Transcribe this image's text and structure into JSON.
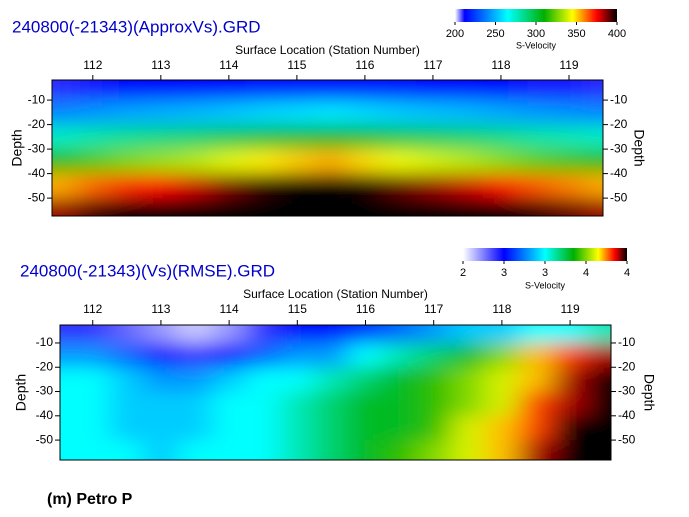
{
  "chart_data": [
    {
      "type": "heatmap",
      "title": "240800(-21343)(ApproxVs).GRD",
      "x_label": "Surface Location (Station Number)",
      "y_label": "Depth",
      "colorbar_label": "S-Velocity",
      "x": [
        111.5,
        112,
        112.5,
        113,
        113.5,
        114,
        114.5,
        115,
        115.5,
        116,
        116.5,
        117,
        117.5,
        118,
        118.5,
        119,
        119.5
      ],
      "y": [
        -5,
        -15,
        -25,
        -35,
        -45,
        -55
      ],
      "values": [
        [
          210,
          211,
          212,
          212,
          213,
          213,
          214,
          215,
          215,
          214,
          214,
          213,
          213,
          212,
          211,
          211,
          210
        ],
        [
          240,
          243,
          246,
          248,
          250,
          253,
          256,
          258,
          260,
          257,
          254,
          252,
          250,
          247,
          244,
          242,
          240
        ],
        [
          275,
          280,
          284,
          287,
          290,
          295,
          299,
          302,
          305,
          301,
          296,
          293,
          290,
          286,
          281,
          278,
          275
        ],
        [
          315,
          321,
          327,
          331,
          335,
          341,
          347,
          351,
          355,
          349,
          343,
          339,
          335,
          329,
          323,
          319,
          315
        ],
        [
          355,
          363,
          370,
          375,
          380,
          388,
          395,
          400,
          405,
          398,
          390,
          385,
          380,
          373,
          365,
          360,
          355
        ],
        [
          385,
          393,
          400,
          405,
          410,
          418,
          425,
          430,
          435,
          428,
          420,
          415,
          410,
          403,
          395,
          390,
          385
        ]
      ],
      "xlim": [
        111.4,
        119.5
      ],
      "ylim": [
        -57.3,
        -1.8
      ],
      "xticks": [
        112,
        113,
        114,
        115,
        116,
        117,
        118,
        119
      ],
      "yticks": [
        -10,
        -20,
        -30,
        -40,
        -50
      ],
      "colorbar_ticks": [
        200,
        250,
        300,
        350,
        400
      ],
      "colorscale": [
        [
          200,
          "#ffffff"
        ],
        [
          212,
          "#0000ff"
        ],
        [
          265,
          "#00ffff"
        ],
        [
          310,
          "#00b000"
        ],
        [
          345,
          "#ffff00"
        ],
        [
          375,
          "#ff0000"
        ],
        [
          400,
          "#000000"
        ]
      ]
    },
    {
      "type": "heatmap",
      "title": "240800(-21343)(Vs)(RMSE).GRD",
      "x_label": "Surface Location (Station Number)",
      "y_label": "Depth",
      "colorbar_label": "S-Velocity",
      "x": [
        111.5,
        112,
        112.5,
        113,
        113.5,
        114,
        114.5,
        115,
        115.5,
        116,
        116.5,
        117,
        117.5,
        118,
        118.5,
        119,
        119.5
      ],
      "y": [
        -5,
        -15,
        -25,
        -35,
        -45,
        -55
      ],
      "values": [
        [
          2.4,
          2.4,
          2.3,
          2.2,
          2.1,
          2.2,
          2.4,
          2.5,
          2.5,
          2.6,
          2.7,
          2.8,
          2.9,
          2.9,
          3.0,
          3.0,
          3.1
        ],
        [
          2.8,
          2.8,
          2.7,
          2.5,
          2.4,
          2.5,
          2.7,
          2.8,
          2.8,
          3.0,
          3.1,
          3.2,
          3.3,
          3.5,
          3.7,
          3.8,
          3.9
        ],
        [
          3.0,
          3.0,
          2.9,
          2.8,
          2.8,
          2.9,
          3.0,
          3.0,
          3.1,
          3.2,
          3.3,
          3.4,
          3.5,
          3.6,
          3.7,
          3.9,
          4.0
        ],
        [
          3.0,
          3.0,
          2.9,
          2.9,
          2.9,
          3.0,
          3.0,
          3.1,
          3.2,
          3.3,
          3.3,
          3.4,
          3.5,
          3.6,
          3.8,
          3.9,
          4.0
        ],
        [
          3.0,
          3.0,
          2.9,
          2.9,
          2.9,
          3.0,
          3.0,
          3.1,
          3.2,
          3.3,
          3.3,
          3.4,
          3.6,
          3.7,
          3.8,
          4.0,
          4.1
        ],
        [
          3.0,
          3.0,
          3.0,
          2.9,
          3.0,
          3.0,
          3.0,
          3.1,
          3.2,
          3.3,
          3.4,
          3.5,
          3.6,
          3.7,
          3.9,
          4.0,
          4.1
        ]
      ],
      "xlim": [
        111.52,
        119.6
      ],
      "ylim": [
        -58.2,
        -2.6
      ],
      "xticks": [
        112,
        113,
        114,
        115,
        116,
        117,
        118,
        119
      ],
      "yticks": [
        -10,
        -20,
        -30,
        -40,
        -50
      ],
      "colorbar_ticks": [
        2,
        {
          "value": 2.5,
          "label": "3"
        },
        3,
        {
          "value": 3.5,
          "label": "4"
        },
        4
      ],
      "colorscale": [
        [
          2,
          "#ffffff"
        ],
        [
          2.5,
          "#0000ff"
        ],
        [
          3,
          "#00ffff"
        ],
        [
          3.35,
          "#00b000"
        ],
        [
          3.65,
          "#ffff00"
        ],
        [
          3.85,
          "#ff0000"
        ],
        [
          4,
          "#000000"
        ]
      ]
    }
  ],
  "caption": "(m) Petro P"
}
